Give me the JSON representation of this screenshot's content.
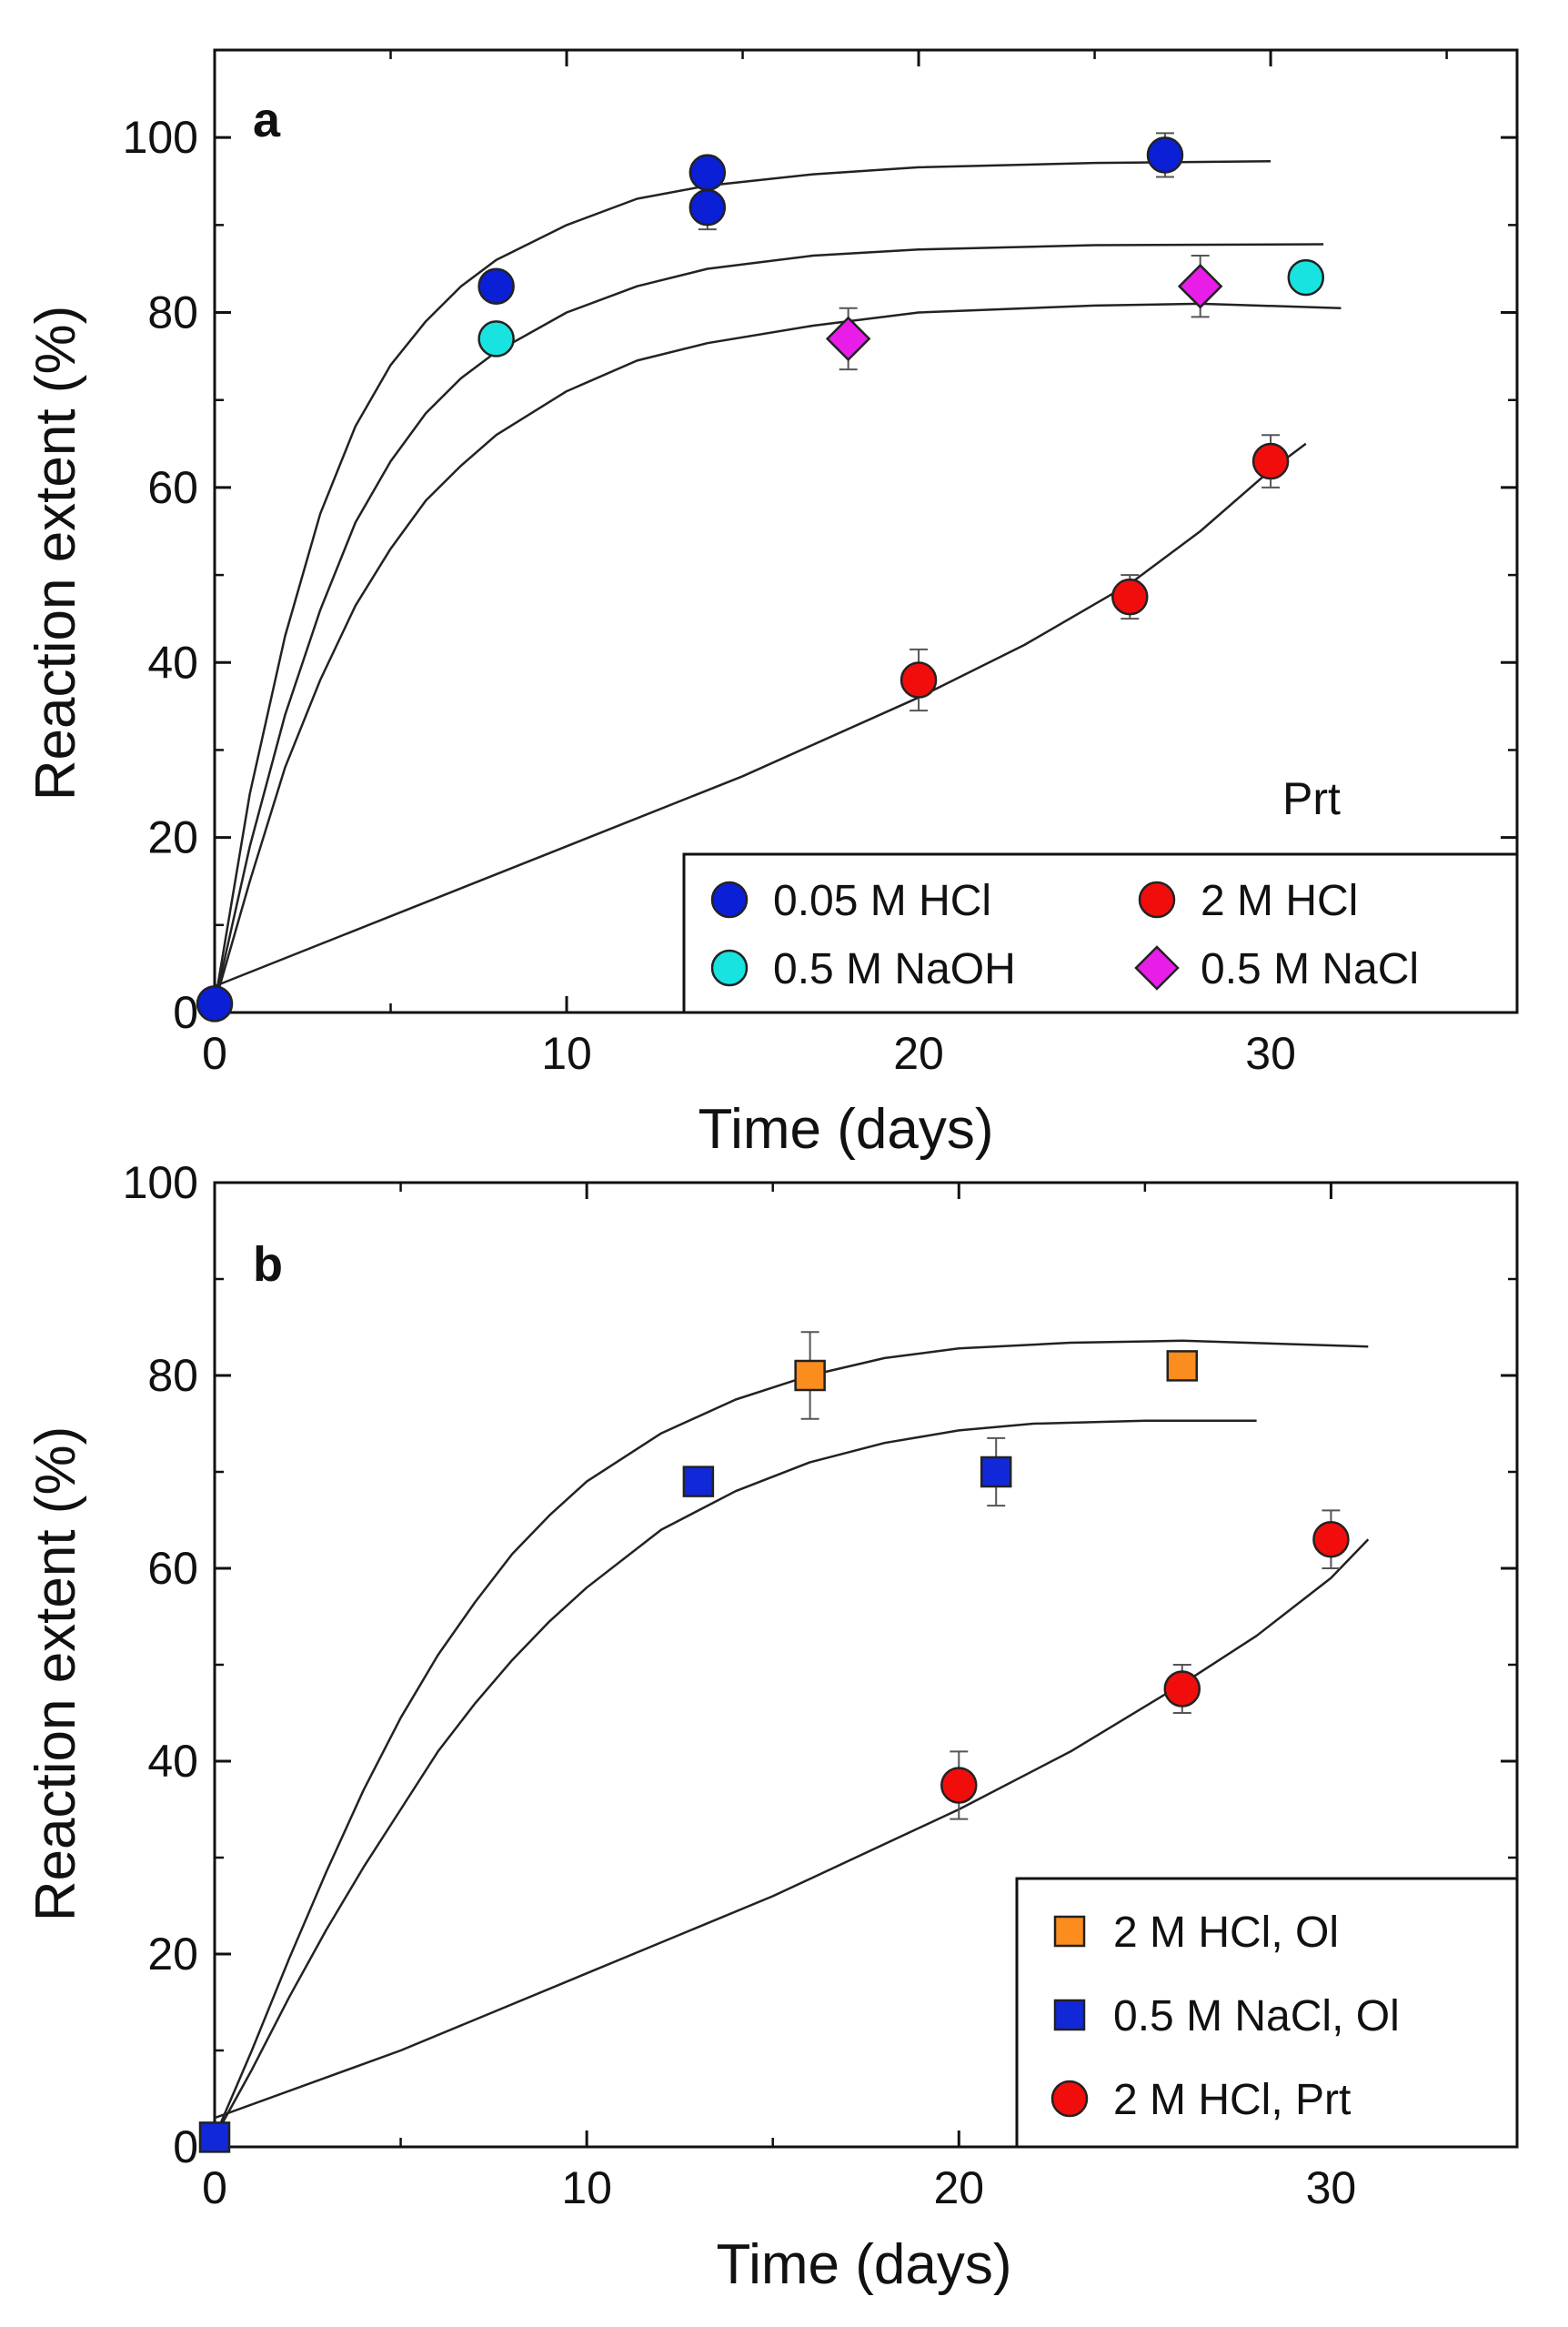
{
  "chart_data": [
    {
      "type": "scatter",
      "panel_label": "a",
      "annotation": "Prt",
      "xlabel": "Time (days)",
      "ylabel": "Reaction extent (%)",
      "xlim": [
        0,
        37
      ],
      "ylim": [
        0,
        110
      ],
      "xticks": [
        0,
        10,
        20,
        30
      ],
      "yticks": [
        0,
        20,
        40,
        60,
        80,
        100
      ],
      "legend_position": "bottom-right",
      "legend_columns": 2,
      "series": [
        {
          "name": "0.05 M HCl",
          "marker": "circle",
          "color": "#0a1fd6",
          "points": [
            {
              "x": 0,
              "y": 1
            },
            {
              "x": 8,
              "y": 83
            },
            {
              "x": 14,
              "y": 92,
              "err": 2.5
            },
            {
              "x": 14,
              "y": 96
            },
            {
              "x": 27,
              "y": 98,
              "err": 2.5
            }
          ],
          "fit": [
            [
              0,
              1
            ],
            [
              1,
              25
            ],
            [
              2,
              43
            ],
            [
              3,
              57
            ],
            [
              4,
              67
            ],
            [
              5,
              74
            ],
            [
              6,
              79
            ],
            [
              7,
              83
            ],
            [
              8,
              86
            ],
            [
              10,
              90
            ],
            [
              12,
              93
            ],
            [
              14,
              94.5
            ],
            [
              17,
              95.8
            ],
            [
              20,
              96.6
            ],
            [
              25,
              97.1
            ],
            [
              30,
              97.3
            ]
          ]
        },
        {
          "name": "0.5 M NaOH",
          "marker": "circle",
          "color": "#19e3e0",
          "points": [
            {
              "x": 8,
              "y": 77
            },
            {
              "x": 31,
              "y": 84
            }
          ],
          "fit": [
            [
              0,
              1
            ],
            [
              1,
              19
            ],
            [
              2,
              34
            ],
            [
              3,
              46
            ],
            [
              4,
              56
            ],
            [
              5,
              63
            ],
            [
              6,
              68.5
            ],
            [
              7,
              72.5
            ],
            [
              8,
              75.5
            ],
            [
              10,
              80
            ],
            [
              12,
              83
            ],
            [
              14,
              85
            ],
            [
              17,
              86.5
            ],
            [
              20,
              87.2
            ],
            [
              25,
              87.7
            ],
            [
              31.5,
              87.8
            ]
          ]
        },
        {
          "name": "2 M HCl",
          "marker": "circle",
          "color": "#f20d0d",
          "points": [
            {
              "x": 20,
              "y": 38,
              "err": 3.5
            },
            {
              "x": 26,
              "y": 47.5,
              "err": 2.5
            },
            {
              "x": 30,
              "y": 63,
              "err": 3
            }
          ],
          "fit": [
            [
              0,
              3
            ],
            [
              5,
              11
            ],
            [
              10,
              19
            ],
            [
              15,
              27
            ],
            [
              20,
              36
            ],
            [
              23,
              42
            ],
            [
              26,
              49
            ],
            [
              28,
              55
            ],
            [
              30,
              62
            ],
            [
              31,
              65
            ]
          ]
        },
        {
          "name": "0.5 M NaCl",
          "marker": "diamond",
          "color": "#e81ee8",
          "points": [
            {
              "x": 18,
              "y": 77,
              "err": 3.5
            },
            {
              "x": 28,
              "y": 83,
              "err": 3.5
            }
          ],
          "fit": [
            [
              0,
              1
            ],
            [
              1,
              15
            ],
            [
              2,
              28
            ],
            [
              3,
              38
            ],
            [
              4,
              46.5
            ],
            [
              5,
              53
            ],
            [
              6,
              58.5
            ],
            [
              7,
              62.5
            ],
            [
              8,
              66
            ],
            [
              10,
              71
            ],
            [
              12,
              74.5
            ],
            [
              14,
              76.5
            ],
            [
              17,
              78.5
            ],
            [
              20,
              80
            ],
            [
              25,
              80.8
            ],
            [
              28,
              81
            ],
            [
              32,
              80.5
            ]
          ]
        }
      ]
    },
    {
      "type": "scatter",
      "panel_label": "b",
      "xlabel": "Time (days)",
      "ylabel": "Reaction extent (%)",
      "xlim": [
        0,
        35
      ],
      "ylim": [
        0,
        100
      ],
      "xticks": [
        0,
        10,
        20,
        30
      ],
      "yticks": [
        0,
        20,
        40,
        60,
        80,
        100
      ],
      "legend_position": "bottom-right",
      "legend_columns": 1,
      "series": [
        {
          "name": "2 M HCl, Ol",
          "marker": "square",
          "color": "#fb8c1e",
          "points": [
            {
              "x": 16,
              "y": 80,
              "err": 4.5
            },
            {
              "x": 26,
              "y": 81
            }
          ],
          "fit": [
            [
              0,
              1
            ],
            [
              1,
              10
            ],
            [
              2,
              19.5
            ],
            [
              3,
              28.5
            ],
            [
              4,
              37
            ],
            [
              5,
              44.5
            ],
            [
              6,
              51
            ],
            [
              7,
              56.5
            ],
            [
              8,
              61.5
            ],
            [
              9,
              65.5
            ],
            [
              10,
              69
            ],
            [
              12,
              74
            ],
            [
              14,
              77.5
            ],
            [
              16,
              80
            ],
            [
              18,
              81.8
            ],
            [
              20,
              82.8
            ],
            [
              23,
              83.4
            ],
            [
              26,
              83.6
            ],
            [
              31,
              83
            ]
          ]
        },
        {
          "name": "0.5 M NaCl, Ol",
          "marker": "square",
          "color": "#1128d8",
          "points": [
            {
              "x": 0,
              "y": 1
            },
            {
              "x": 13,
              "y": 69
            },
            {
              "x": 21,
              "y": 70,
              "err": 3.5
            }
          ],
          "fit": [
            [
              0,
              1
            ],
            [
              1,
              8
            ],
            [
              2,
              15.5
            ],
            [
              3,
              22.5
            ],
            [
              4,
              29
            ],
            [
              5,
              35
            ],
            [
              6,
              41
            ],
            [
              7,
              46
            ],
            [
              8,
              50.5
            ],
            [
              9,
              54.5
            ],
            [
              10,
              58
            ],
            [
              12,
              64
            ],
            [
              14,
              68
            ],
            [
              16,
              71
            ],
            [
              18,
              73
            ],
            [
              20,
              74.3
            ],
            [
              22,
              75
            ],
            [
              25,
              75.3
            ],
            [
              28,
              75.3
            ]
          ]
        },
        {
          "name": "2 M HCl, Prt",
          "marker": "circle",
          "color": "#f20d0d",
          "points": [
            {
              "x": 20,
              "y": 37.5,
              "err": 3.5
            },
            {
              "x": 26,
              "y": 47.5,
              "err": 2.5
            },
            {
              "x": 30,
              "y": 63,
              "err": 3
            }
          ],
          "fit": [
            [
              0,
              3
            ],
            [
              5,
              10
            ],
            [
              10,
              18
            ],
            [
              15,
              26
            ],
            [
              20,
              35
            ],
            [
              23,
              41
            ],
            [
              26,
              48
            ],
            [
              28,
              53
            ],
            [
              30,
              59
            ],
            [
              31,
              63
            ]
          ]
        }
      ]
    }
  ]
}
